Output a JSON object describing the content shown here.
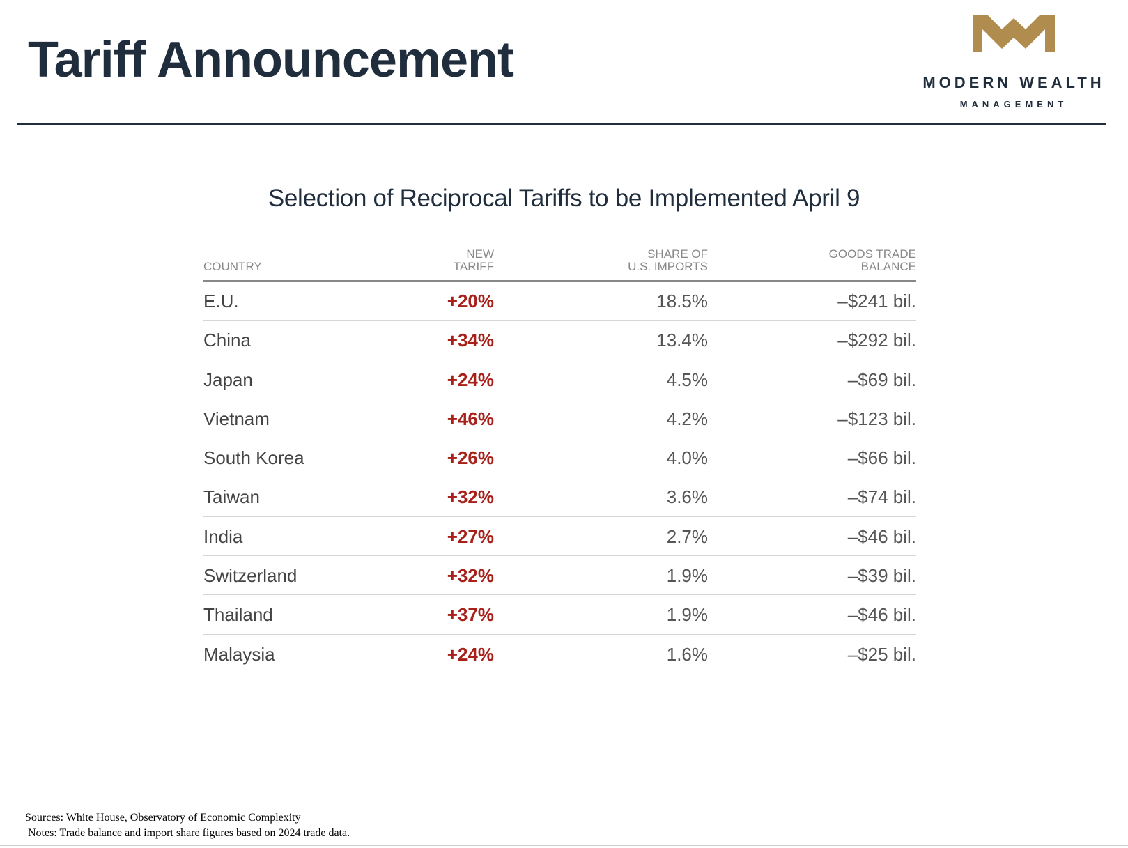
{
  "header": {
    "title": "Tariff Announcement"
  },
  "logo": {
    "line1": "MODERN WEALTH",
    "line2": "MANAGEMENT",
    "color": "#b08d4e"
  },
  "table": {
    "title": "Selection of Reciprocal Tariffs to be Implemented April 9",
    "headers": {
      "country": "COUNTRY",
      "new_tariff": [
        "NEW",
        "TARIFF"
      ],
      "share": [
        "SHARE OF",
        "U.S. IMPORTS"
      ],
      "balance": [
        "GOODS TRADE",
        "BALANCE"
      ]
    },
    "tariff_color": "#a8201a",
    "rows": [
      {
        "country": "E.U.",
        "tariff": "+20%",
        "share": "18.5%",
        "balance": "–$241 bil."
      },
      {
        "country": "China",
        "tariff": "+34%",
        "share": "13.4%",
        "balance": "–$292 bil."
      },
      {
        "country": "Japan",
        "tariff": "+24%",
        "share": "4.5%",
        "balance": "–$69 bil."
      },
      {
        "country": "Vietnam",
        "tariff": "+46%",
        "share": "4.2%",
        "balance": "–$123 bil."
      },
      {
        "country": "South Korea",
        "tariff": "+26%",
        "share": "4.0%",
        "balance": "–$66 bil."
      },
      {
        "country": "Taiwan",
        "tariff": "+32%",
        "share": "3.6%",
        "balance": "–$74 bil."
      },
      {
        "country": "India",
        "tariff": "+27%",
        "share": "2.7%",
        "balance": "–$46 bil."
      },
      {
        "country": "Switzerland",
        "tariff": "+32%",
        "share": "1.9%",
        "balance": "–$39 bil."
      },
      {
        "country": "Thailand",
        "tariff": "+37%",
        "share": "1.9%",
        "balance": "–$46 bil."
      },
      {
        "country": "Malaysia",
        "tariff": "+24%",
        "share": "1.6%",
        "balance": "–$25 bil."
      }
    ]
  },
  "footer": {
    "sources": "Sources: White House, Observatory of Economic Complexity",
    "notes": "Notes: Trade balance and import share figures based on 2024 trade data."
  }
}
